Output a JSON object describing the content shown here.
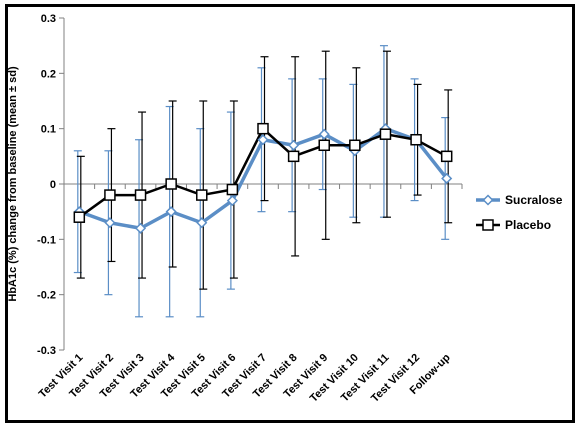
{
  "chart_data": {
    "type": "line",
    "title": "",
    "xlabel": "",
    "ylabel": "HbA1c (%) change from baseline (mean ± sd)",
    "ylim": [
      -0.3,
      0.3
    ],
    "yticks": [
      0.3,
      0.2,
      0.1,
      0,
      -0.1,
      -0.2,
      -0.3
    ],
    "ytick_labels": [
      "0.3",
      "0.2",
      "0.1",
      "0",
      "-0.1",
      "-0.2",
      "-0.3"
    ],
    "categories": [
      "Test Visit 1",
      "Test Visit 2",
      "Test Visit 3",
      "Test Visit 4",
      "Test Visit 5",
      "Test Visit 6",
      "Test Visit 7",
      "Test Visit 8",
      "Test Visit 9",
      "Test Visit 10",
      "Test Visit 11",
      "Test Visit 12",
      "Follow-up"
    ],
    "grid": false,
    "legend_position": "right",
    "series": [
      {
        "name": "Sucralose",
        "color": "#5b8ec6",
        "marker": "diamond",
        "values": [
          -0.05,
          -0.07,
          -0.08,
          -0.05,
          -0.07,
          -0.03,
          0.08,
          0.07,
          0.09,
          0.06,
          0.1,
          0.08,
          0.01
        ],
        "err_low": [
          -0.16,
          -0.2,
          -0.24,
          -0.24,
          -0.24,
          -0.19,
          -0.05,
          -0.05,
          -0.01,
          -0.06,
          -0.06,
          -0.03,
          -0.1
        ],
        "err_high": [
          0.06,
          0.06,
          0.08,
          0.14,
          0.1,
          0.13,
          0.21,
          0.19,
          0.19,
          0.18,
          0.25,
          0.19,
          0.12
        ]
      },
      {
        "name": "Placebo",
        "color": "#000000",
        "marker": "square",
        "values": [
          -0.06,
          -0.02,
          -0.02,
          0.0,
          -0.02,
          -0.01,
          0.1,
          0.05,
          0.07,
          0.07,
          0.09,
          0.08,
          0.05
        ],
        "err_low": [
          -0.17,
          -0.14,
          -0.17,
          -0.15,
          -0.19,
          -0.17,
          -0.03,
          -0.13,
          -0.1,
          -0.07,
          -0.06,
          -0.02,
          -0.07
        ],
        "err_high": [
          0.05,
          0.1,
          0.13,
          0.15,
          0.15,
          0.15,
          0.23,
          0.23,
          0.24,
          0.21,
          0.24,
          0.18,
          0.17
        ]
      }
    ]
  }
}
